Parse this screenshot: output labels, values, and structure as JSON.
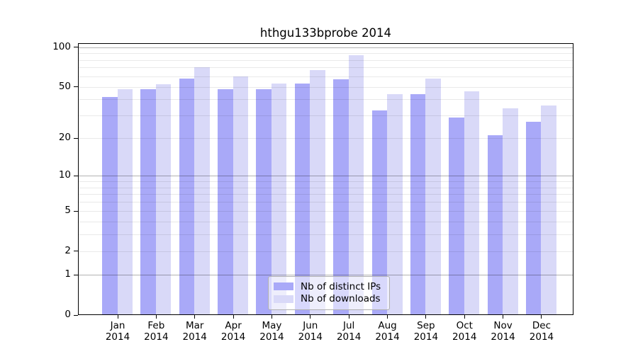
{
  "title": "hthgu133bprobe 2014",
  "chart_data": {
    "type": "bar",
    "title": "hthgu133bprobe 2014",
    "months": [
      "Jan",
      "Feb",
      "Mar",
      "Apr",
      "May",
      "Jun",
      "Jul",
      "Aug",
      "Sep",
      "Oct",
      "Nov",
      "Dec"
    ],
    "year": "2014",
    "categories": [
      "Jan 2014",
      "Feb 2014",
      "Mar 2014",
      "Apr 2014",
      "May 2014",
      "Jun 2014",
      "Jul 2014",
      "Aug 2014",
      "Sep 2014",
      "Oct 2014",
      "Nov 2014",
      "Dec 2014"
    ],
    "series": [
      {
        "name": "Nb of distinct IPs",
        "color": "#a9a9f8",
        "values": [
          42,
          48,
          58,
          48,
          48,
          53,
          57,
          33,
          44,
          29,
          21,
          27
        ]
      },
      {
        "name": "Nb of downloads",
        "color": "#d9d9f8",
        "values": [
          48,
          52,
          70,
          60,
          53,
          67,
          87,
          44,
          58,
          46,
          34,
          36
        ]
      }
    ],
    "xlabel": "",
    "ylabel": "",
    "ylim": [
      0,
      100
    ],
    "yscale": "log10(1+x)",
    "y_ticks": [
      0,
      1,
      2,
      5,
      10,
      20,
      50,
      100
    ],
    "y_gridlines": [
      1,
      2,
      3,
      4,
      5,
      6,
      7,
      8,
      9,
      10,
      20,
      30,
      40,
      50,
      60,
      70,
      80,
      90,
      100
    ],
    "y_gridlines_emphasized": [
      1,
      10,
      100
    ],
    "grid": true,
    "legend_position": "lower-center"
  },
  "colors": {
    "distinct_ips_bar": "#a9a9f8",
    "downloads_bar": "#d9d9f8",
    "frame": "#000000",
    "background": "#ffffff"
  }
}
